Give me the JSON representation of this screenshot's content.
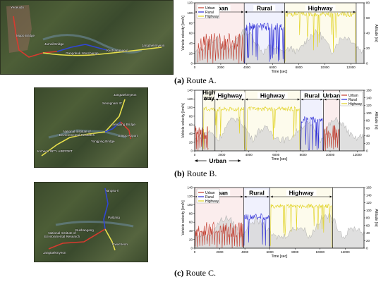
{
  "colors": {
    "urban": "#c0392b",
    "rural": "#2a2ad6",
    "highway": "#e0d21f",
    "altitude": "#9a9a9a"
  },
  "routes": [
    {
      "caption_label": "(a)",
      "caption_text": "Route A.",
      "map_labels": [
        "Yeoeuido",
        "Mapo Bridge",
        "Jamsil Bridge",
        "Gangdeok Interchange",
        "Kkotsammaeul",
        "Jangtaekmyeon"
      ],
      "chart_data": {
        "type": "line",
        "ylabel": "Vehicle velocity [km/h]",
        "y2label": "Altitude [m]",
        "xlabel": "Time [sec]",
        "xlim": [
          0,
          13000
        ],
        "ylim": [
          0,
          120
        ],
        "y2lim": [
          0,
          80
        ],
        "xticks": [
          0,
          2000,
          4000,
          6000,
          8000,
          10000,
          12000
        ],
        "yticks": [
          0,
          20,
          40,
          60,
          80,
          100,
          120
        ],
        "y2ticks": [
          0,
          20,
          40,
          60,
          80
        ],
        "legend": [
          "Urban",
          "Rural",
          "Highway"
        ],
        "legend_position": "top-left",
        "segments": [
          {
            "label": "Urban",
            "x0": 0,
            "x1": 3800
          },
          {
            "label": "Rural",
            "x0": 3800,
            "x1": 6900
          },
          {
            "label": "Highway",
            "x0": 6900,
            "x1": 12400
          }
        ],
        "series": [
          {
            "name": "Urban",
            "shape": "urban",
            "x_range": [
              200,
              3800
            ]
          },
          {
            "name": "Rural",
            "shape": "rural",
            "x_range": [
              3800,
              6900
            ]
          },
          {
            "name": "Highway",
            "shape": "highway",
            "x_range": [
              6900,
              12400
            ]
          }
        ]
      }
    },
    {
      "caption_label": "(b)",
      "caption_text": "Route B.",
      "map_labels": [
        "Seongnam IC",
        "Jangtaekmyeon",
        "National Institute of Environmental Research",
        "Incheon INT'L AIRPORT",
        "Yongjong Bridge",
        "Gimpo Airport",
        "Seogang Bridge"
      ],
      "chart_data": {
        "type": "line",
        "ylabel": "Vehicle velocity [km/h]",
        "y2label": "Altitude [m]",
        "xlabel": "Time [sec]",
        "xlim": [
          0,
          12500
        ],
        "ylim": [
          0,
          140
        ],
        "y2lim": [
          0,
          160
        ],
        "xticks": [
          0,
          2000,
          4000,
          6000,
          8000,
          10000,
          12000
        ],
        "yticks": [
          0,
          20,
          40,
          60,
          80,
          100,
          120,
          140
        ],
        "y2ticks": [
          0,
          20,
          40,
          60,
          80,
          100,
          120,
          140,
          160
        ],
        "legend": [
          "Urban",
          "Rural",
          "Highway"
        ],
        "legend_position": "top-right",
        "segments": [
          {
            "label": "High way",
            "x0": 600,
            "x1": 1500
          },
          {
            "label": "Highway",
            "x0": 1500,
            "x1": 3700
          },
          {
            "label": "Highway",
            "x0": 3700,
            "x1": 7800
          },
          {
            "label": "Rural",
            "x0": 7800,
            "x1": 9500
          },
          {
            "label": "Urban",
            "x0": 9500,
            "x1": 10700
          }
        ],
        "bottom_annotation": {
          "label": "Urban",
          "x0": 0,
          "x1": 3400
        },
        "series": [
          {
            "name": "Urban",
            "shape": "urban",
            "x_range": [
              0,
              1000
            ]
          },
          {
            "name": "Highway",
            "shape": "highway",
            "x_range": [
              600,
              3700
            ]
          },
          {
            "name": "Highway",
            "shape": "highway",
            "x_range": [
              3800,
              7800
            ]
          },
          {
            "name": "Rural",
            "shape": "rural",
            "x_range": [
              7800,
              9500
            ]
          },
          {
            "name": "Urban",
            "shape": "urban",
            "x_range": [
              9500,
              10700
            ]
          }
        ]
      }
    },
    {
      "caption_label": "(c)",
      "caption_text": "Route C.",
      "map_labels": [
        "Yangsu-ri",
        "Paldang",
        "Bukhangang",
        "National Institute of Environmental Research",
        "Gwacheon",
        "Jangtaekmyeon"
      ],
      "chart_data": {
        "type": "line",
        "ylabel": "Vehicle velocity [km/h]",
        "y2label": "Altitude [m]",
        "xlabel": "Time [sec]",
        "xlim": [
          0,
          13500
        ],
        "ylim": [
          0,
          140
        ],
        "y2lim": [
          0,
          160
        ],
        "xticks": [
          0,
          2000,
          4000,
          6000,
          8000,
          10000,
          12000
        ],
        "yticks": [
          0,
          20,
          40,
          60,
          80,
          100,
          120,
          140
        ],
        "y2ticks": [
          0,
          20,
          40,
          60,
          80,
          100,
          120,
          140,
          160
        ],
        "legend": [
          "Urban",
          "Rural",
          "Highway"
        ],
        "legend_position": "top-left",
        "segments": [
          {
            "label": "Urban",
            "x0": 0,
            "x1": 3900
          },
          {
            "label": "Rural",
            "x0": 3900,
            "x1": 6000
          },
          {
            "label": "Highway",
            "x0": 6000,
            "x1": 11000
          }
        ],
        "series": [
          {
            "name": "Urban",
            "shape": "urban",
            "x_range": [
              0,
              3900
            ]
          },
          {
            "name": "Rural",
            "shape": "rural",
            "x_range": [
              3900,
              6000
            ]
          },
          {
            "name": "Highway",
            "shape": "highway",
            "x_range": [
              6000,
              11000
            ]
          }
        ]
      }
    }
  ]
}
